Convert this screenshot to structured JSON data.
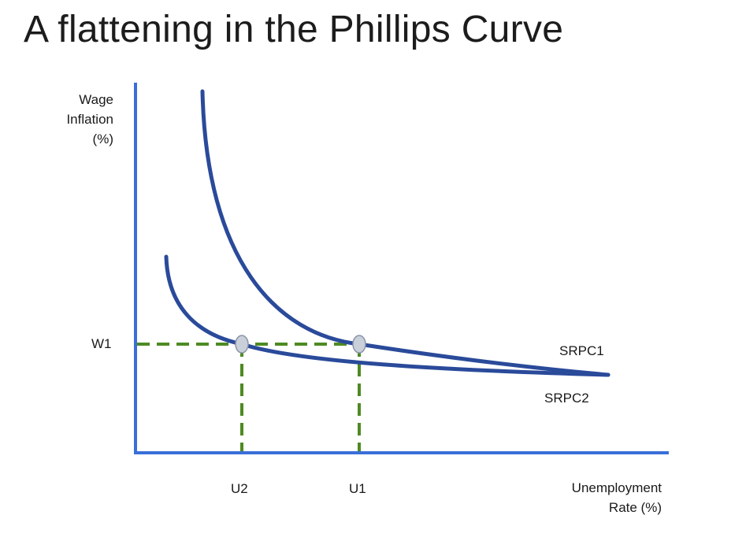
{
  "title": "A flattening in the Phillips Curve",
  "axes": {
    "y_label_lines": [
      "Wage",
      "Inflation",
      "(%)"
    ],
    "x_label_lines": [
      "Unemployment",
      "Rate (%)"
    ]
  },
  "tick_labels": {
    "w1": "W1",
    "u1": "U1",
    "u2": "U2"
  },
  "curves": {
    "srpc1": "SRPC1",
    "srpc2": "SRPC2"
  },
  "colors": {
    "axis": "#3a6fd8",
    "curve": "#2a4a9a",
    "guide": "#4e8a22",
    "point_fill": "#c9d0da",
    "point_stroke": "#8a94a6"
  }
}
